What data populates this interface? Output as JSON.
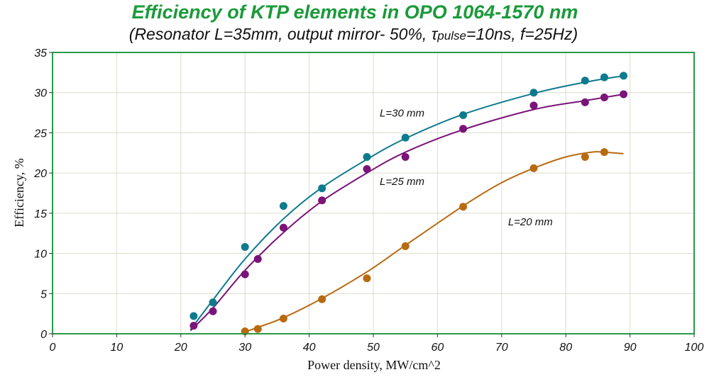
{
  "chart_data": {
    "type": "scatter",
    "title": "Efficiency of KTP elements in OPO 1064-1570 nm",
    "subtitle": {
      "prefix": "(Resonator L=35mm, output mirror- 50%, ",
      "tau": "τ",
      "tau_sub": "pulse",
      "suffix": "=10ns, f=25Hz)"
    },
    "xlabel": "Power density, MW/cm^2",
    "ylabel": "Efficiency, %",
    "xlim": [
      0,
      100
    ],
    "ylim": [
      0,
      35
    ],
    "xticks": [
      0,
      10,
      20,
      30,
      40,
      50,
      60,
      70,
      80,
      90,
      100
    ],
    "yticks": [
      0,
      5,
      10,
      15,
      20,
      25,
      30,
      35
    ],
    "grid": true,
    "colors": {
      "title": "#1a9a3a",
      "frame": "#2a9a4a",
      "grid": "#dcdccc"
    },
    "series": [
      {
        "name": "L=30 mm",
        "color": "#0e7a8e",
        "points": [
          [
            22,
            2.2
          ],
          [
            25,
            3.9
          ],
          [
            30,
            10.8
          ],
          [
            36,
            15.9
          ],
          [
            42,
            18.1
          ],
          [
            49,
            22.0
          ],
          [
            55,
            24.4
          ],
          [
            64,
            27.2
          ],
          [
            75,
            30.0
          ],
          [
            83,
            31.5
          ],
          [
            86,
            31.9
          ],
          [
            89,
            32.1
          ]
        ],
        "curve": [
          [
            21.5,
            0.5
          ],
          [
            25,
            4.2
          ],
          [
            30,
            9.3
          ],
          [
            36,
            14.3
          ],
          [
            42,
            18.2
          ],
          [
            49,
            21.7
          ],
          [
            55,
            24.3
          ],
          [
            64,
            27.3
          ],
          [
            75,
            29.9
          ],
          [
            83,
            31.3
          ],
          [
            89,
            32.1
          ]
        ],
        "label_pos": [
          51,
          27
        ]
      },
      {
        "name": "L=25 mm",
        "color": "#7a1478",
        "points": [
          [
            22,
            1.0
          ],
          [
            25,
            2.8
          ],
          [
            30,
            7.4
          ],
          [
            32,
            9.3
          ],
          [
            36,
            13.2
          ],
          [
            42,
            16.6
          ],
          [
            49,
            20.5
          ],
          [
            55,
            22.0
          ],
          [
            64,
            25.5
          ],
          [
            75,
            28.4
          ],
          [
            83,
            28.8
          ],
          [
            86,
            29.4
          ],
          [
            89,
            29.8
          ]
        ],
        "curve": [
          [
            21.5,
            0.4
          ],
          [
            25,
            3.2
          ],
          [
            30,
            7.9
          ],
          [
            36,
            12.6
          ],
          [
            42,
            16.5
          ],
          [
            49,
            20.0
          ],
          [
            55,
            22.6
          ],
          [
            64,
            25.4
          ],
          [
            75,
            27.9
          ],
          [
            83,
            29.0
          ],
          [
            89,
            29.8
          ]
        ],
        "label_pos": [
          51,
          18.5
        ]
      },
      {
        "name": "L=20 mm",
        "color": "#b86a10",
        "points": [
          [
            30,
            0.3
          ],
          [
            32,
            0.6
          ],
          [
            36,
            1.9
          ],
          [
            42,
            4.3
          ],
          [
            49,
            6.9
          ],
          [
            55,
            10.9
          ],
          [
            64,
            15.8
          ],
          [
            75,
            20.6
          ],
          [
            83,
            22.0
          ],
          [
            86,
            22.6
          ]
        ],
        "curve": [
          [
            29.5,
            0.1
          ],
          [
            32,
            0.8
          ],
          [
            36,
            2.0
          ],
          [
            42,
            4.4
          ],
          [
            49,
            7.7
          ],
          [
            55,
            11.0
          ],
          [
            64,
            15.9
          ],
          [
            70,
            18.8
          ],
          [
            75,
            20.6
          ],
          [
            80,
            22.0
          ],
          [
            84,
            22.6
          ],
          [
            86,
            22.6
          ],
          [
            89,
            22.4
          ]
        ],
        "label_pos": [
          71,
          13.5
        ]
      }
    ]
  }
}
